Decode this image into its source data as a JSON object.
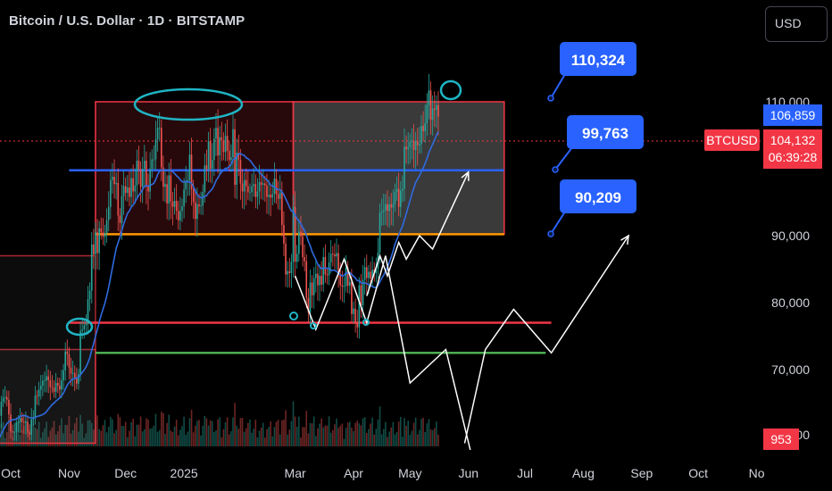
{
  "header": {
    "title": "Bitcoin / U.S. Dollar · 1D · BITSTAMP",
    "currency": "USD"
  },
  "colors": {
    "background": "#000000",
    "up": "#26a69a",
    "down": "#ef5350",
    "box_red": "#f23645",
    "box_gray": "#808080",
    "level_blue": "#2962ff",
    "level_red": "#f23645",
    "level_green": "#4caf50",
    "level_orange": "#ff9800",
    "annotation_cyan": "#1fb5c4",
    "callout": "#2962ff",
    "ma": "#2f6be0"
  },
  "chart_data": {
    "type": "candlestick",
    "symbol": "BTCUSD",
    "exchange": "BITSTAMP",
    "interval": "1D",
    "y_axis": {
      "tick_labels": [
        "110,000",
        "90,000",
        "80,000",
        "70,000",
        "60,000"
      ],
      "ticks": [
        110000,
        90000,
        80000,
        70000,
        60000
      ]
    },
    "x_axis": {
      "tick_labels": [
        "Oct",
        "Nov",
        "Dec",
        "2025",
        "Mar",
        "Apr",
        "May",
        "Jun",
        "Jul",
        "Aug",
        "Sep",
        "Oct",
        "No"
      ],
      "ticks": [
        "2024-10-01",
        "2024-11-01",
        "2024-12-01",
        "2025-01-01",
        "2025-03-01",
        "2025-04-01",
        "2025-05-01",
        "2025-06-01",
        "2025-07-01",
        "2025-08-01",
        "2025-09-01",
        "2025-10-01",
        "2025-11-01"
      ]
    },
    "price_labels": [
      {
        "label": "106,859",
        "value": 106859,
        "kind": "high"
      },
      {
        "label": "BTCUSD",
        "value": 104132,
        "kind": "symbol"
      },
      {
        "label": "104,132",
        "value": 104132,
        "kind": "last"
      },
      {
        "label": "06:39:28",
        "value": 104132,
        "kind": "countdown"
      },
      {
        "label": "953",
        "value": 59000,
        "kind": "volume"
      }
    ],
    "callouts": [
      {
        "label": "110,324",
        "value": 110324
      },
      {
        "label": "99,763",
        "value": 99763
      },
      {
        "label": "90,209",
        "value": 90209
      }
    ],
    "levels": [
      {
        "value": 99763,
        "color": "#2962ff",
        "from": "2024-11-01",
        "to": "2025-06-20"
      },
      {
        "value": 90209,
        "color": "#ff9800",
        "from": "2024-11-15",
        "to": "2025-06-20"
      },
      {
        "value": 77000,
        "color": "#f23645",
        "from": "2024-11-01",
        "to": "2025-07-15"
      },
      {
        "value": 72500,
        "color": "#4caf50",
        "from": "2024-11-15",
        "to": "2025-07-12"
      }
    ],
    "boxes": [
      {
        "from": "2024-11-15",
        "to": "2025-02-28",
        "high": 110000,
        "low": 90209,
        "style": "red"
      },
      {
        "from": "2025-02-28",
        "to": "2025-06-20",
        "high": 110000,
        "low": 90209,
        "style": "gray"
      },
      {
        "from": "2024-09-01",
        "to": "2024-11-15",
        "high": 73000,
        "low": 59000,
        "style": "dark"
      },
      {
        "from": "2024-09-01",
        "to": "2024-11-15",
        "high": 87000,
        "low": 59000,
        "style": "dark"
      }
    ],
    "projection_path": [
      {
        "x": "2025-03-01",
        "y": 84000
      },
      {
        "x": "2025-03-12",
        "y": 76000
      },
      {
        "x": "2025-03-27",
        "y": 86500
      },
      {
        "x": "2025-04-08",
        "y": 77000
      },
      {
        "x": "2025-04-18",
        "y": 87000
      },
      {
        "x": "2025-05-01",
        "y": 68000
      },
      {
        "x": "2025-05-20",
        "y": 73000
      },
      {
        "x": "2025-06-02",
        "y": 58000
      }
    ],
    "projection_up": [
      {
        "x": "2025-04-08",
        "y": 81000
      },
      {
        "x": "2025-04-15",
        "y": 87000
      },
      {
        "x": "2025-04-19",
        "y": 84000
      },
      {
        "x": "2025-04-25",
        "y": 89000
      },
      {
        "x": "2025-04-29",
        "y": 86500
      },
      {
        "x": "2025-05-06",
        "y": 90000
      },
      {
        "x": "2025-05-13",
        "y": 88000
      },
      {
        "x": "2025-06-01",
        "y": 99500
      }
    ],
    "projection_future": [
      {
        "x": "2025-05-30",
        "y": 59000
      },
      {
        "x": "2025-06-10",
        "y": 73000
      },
      {
        "x": "2025-06-25",
        "y": 79000
      },
      {
        "x": "2025-07-15",
        "y": 72500
      },
      {
        "x": "2025-08-25",
        "y": 90000
      }
    ],
    "candles": {
      "start": "2024-09-01",
      "close": [
        57800,
        59100,
        58000,
        56300,
        56200,
        54100,
        54700,
        54800,
        57100,
        57600,
        57400,
        58100,
        60500,
        59900,
        59100,
        58200,
        60300,
        61700,
        62900,
        63200,
        63300,
        63500,
        63300,
        64200,
        63100,
        65200,
        65800,
        65900,
        65500,
        63300,
        60800,
        60600,
        60700,
        62100,
        62100,
        62800,
        62200,
        62100,
        62200,
        60600,
        60300,
        62600,
        62900,
        66100,
        66000,
        67000,
        67600,
        68300,
        68400,
        69000,
        68400,
        67400,
        67300,
        66700,
        68000,
        67600,
        67000,
        68400,
        69900,
        72700,
        72300,
        70300,
        69400,
        69500,
        68800,
        67900,
        69300,
        75800,
        76000,
        76600,
        76800,
        80500,
        81800,
        88700,
        87200,
        90500,
        87400,
        91100,
        90500,
        89800,
        90400,
        92300,
        94300,
        98300,
        98800,
        97700,
        97900,
        93000,
        91900,
        95900,
        97400,
        96400,
        97200,
        95800,
        98600,
        96600,
        97500,
        101200,
        99900,
        97300,
        100000,
        101200,
        97400,
        96600,
        100000,
        101400,
        101400,
        104400,
        106100,
        106100,
        100200,
        97300,
        97700,
        94800,
        99000,
        95100,
        94300,
        95200,
        93700,
        92300,
        93700,
        94400,
        96900,
        98100,
        98300,
        102100,
        96900,
        95000,
        92500,
        94700,
        94400,
        94500,
        96500,
        100500,
        99900,
        104100,
        100000,
        101300,
        104500,
        106100,
        102000,
        104700,
        104200,
        102500,
        104900,
        102700,
        101300,
        101700,
        105900,
        97600,
        102400,
        101300,
        97800,
        96600,
        98300,
        97400,
        96500,
        96500,
        97400,
        97700,
        95800,
        96600,
        98000,
        97600,
        97800,
        97500,
        95800,
        96100,
        95700,
        96200,
        98500,
        96200,
        95500,
        96500,
        91600,
        88800,
        84200,
        84700,
        84400,
        86100,
        94300,
        86100,
        87300,
        90600,
        89900,
        86800,
        86200,
        80700,
        78500,
        83000,
        81100,
        83700,
        84300,
        82600,
        84000,
        82700,
        86800,
        84200,
        84100,
        86000,
        87300,
        87200,
        86900,
        87400,
        84300,
        82600,
        82400,
        82500,
        85200,
        82500,
        83100,
        78300,
        79100,
        77000,
        76300,
        82600,
        79600,
        83400,
        85300,
        83700,
        84600,
        83600,
        84900,
        84400,
        85100,
        87500,
        93400,
        93600,
        93800,
        94700,
        93700,
        94700,
        94200,
        94700,
        96500,
        97000,
        94300,
        96700,
        97000,
        103300,
        102900,
        103200,
        104000,
        104200,
        102800,
        104100,
        103500,
        103700,
        106400,
        105600,
        106800,
        109500,
        111700,
        107300,
        109000,
        108800,
        109500,
        107800
      ]
    }
  }
}
